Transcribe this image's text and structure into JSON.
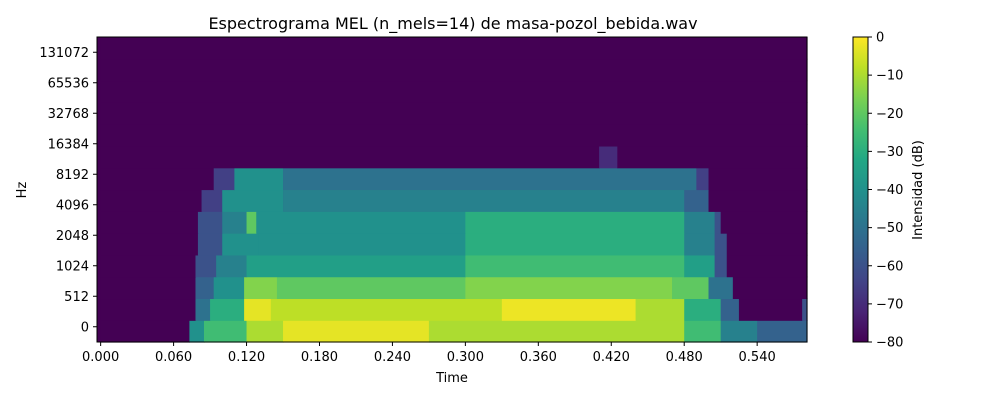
{
  "chart_data": {
    "type": "heatmap",
    "title": "Espectrograma MEL (n_mels=14) de masa-pozol_bebida.wav",
    "xlabel": "Time",
    "ylabel": "Hz",
    "x_ticks": [
      "0.000",
      "0.060",
      "0.120",
      "0.180",
      "0.240",
      "0.300",
      "0.360",
      "0.420",
      "0.480",
      "0.540"
    ],
    "x_tick_values": [
      0,
      0.06,
      0.12,
      0.18,
      0.24,
      0.3,
      0.36,
      0.42,
      0.48,
      0.54
    ],
    "xlim": [
      -0.003,
      0.581
    ],
    "y_ticks": [
      "0",
      "512",
      "1024",
      "2048",
      "4096",
      "8192",
      "16384",
      "32768",
      "65536",
      "131072"
    ],
    "n_mels": 14,
    "colorbar": {
      "label": "Intensidad (dB)",
      "ticks": [
        "0",
        "−10",
        "−20",
        "−30",
        "−40",
        "−50",
        "−60",
        "−70",
        "−80"
      ],
      "tick_values": [
        0,
        -10,
        -20,
        -30,
        -40,
        -50,
        -60,
        -70,
        -80
      ],
      "range": [
        -80,
        0
      ],
      "colormap": "viridis"
    },
    "bands": [
      {
        "band": 0,
        "segments": [
          [
            0.0,
            0.073,
            -80
          ],
          [
            0.073,
            0.085,
            -40
          ],
          [
            0.085,
            0.12,
            -25
          ],
          [
            0.12,
            0.15,
            -10
          ],
          [
            0.15,
            0.27,
            -3
          ],
          [
            0.27,
            0.48,
            -10
          ],
          [
            0.48,
            0.51,
            -25
          ],
          [
            0.51,
            0.54,
            -45
          ],
          [
            0.54,
            0.581,
            -55
          ]
        ]
      },
      {
        "band": 1,
        "segments": [
          [
            0.0,
            0.078,
            -80
          ],
          [
            0.078,
            0.09,
            -50
          ],
          [
            0.09,
            0.118,
            -30
          ],
          [
            0.118,
            0.14,
            -3
          ],
          [
            0.14,
            0.33,
            -8
          ],
          [
            0.33,
            0.44,
            -2
          ],
          [
            0.44,
            0.48,
            -10
          ],
          [
            0.48,
            0.51,
            -30
          ],
          [
            0.51,
            0.525,
            -55
          ],
          [
            0.525,
            0.577,
            -80
          ],
          [
            0.577,
            0.581,
            -60
          ]
        ]
      },
      {
        "band": 2,
        "segments": [
          [
            0.0,
            0.078,
            -80
          ],
          [
            0.078,
            0.093,
            -55
          ],
          [
            0.093,
            0.118,
            -40
          ],
          [
            0.118,
            0.145,
            -15
          ],
          [
            0.145,
            0.3,
            -20
          ],
          [
            0.3,
            0.47,
            -15
          ],
          [
            0.47,
            0.5,
            -20
          ],
          [
            0.5,
            0.52,
            -50
          ],
          [
            0.52,
            0.581,
            -80
          ]
        ]
      },
      {
        "band": 3,
        "segments": [
          [
            0.0,
            0.078,
            -80
          ],
          [
            0.078,
            0.095,
            -60
          ],
          [
            0.095,
            0.12,
            -45
          ],
          [
            0.12,
            0.3,
            -35
          ],
          [
            0.3,
            0.48,
            -25
          ],
          [
            0.48,
            0.505,
            -35
          ],
          [
            0.505,
            0.515,
            -60
          ],
          [
            0.515,
            0.581,
            -80
          ]
        ]
      },
      {
        "band": 4,
        "segments": [
          [
            0.0,
            0.08,
            -80
          ],
          [
            0.08,
            0.1,
            -60
          ],
          [
            0.1,
            0.13,
            -40
          ],
          [
            0.13,
            0.3,
            -40
          ],
          [
            0.3,
            0.48,
            -30
          ],
          [
            0.48,
            0.505,
            -45
          ],
          [
            0.505,
            0.515,
            -60
          ],
          [
            0.515,
            0.581,
            -80
          ]
        ]
      },
      {
        "band": 5,
        "segments": [
          [
            0.0,
            0.08,
            -80
          ],
          [
            0.08,
            0.1,
            -60
          ],
          [
            0.1,
            0.12,
            -45
          ],
          [
            0.12,
            0.128,
            -20
          ],
          [
            0.128,
            0.3,
            -40
          ],
          [
            0.3,
            0.48,
            -30
          ],
          [
            0.48,
            0.505,
            -45
          ],
          [
            0.505,
            0.51,
            -60
          ],
          [
            0.51,
            0.581,
            -80
          ]
        ]
      },
      {
        "band": 6,
        "segments": [
          [
            0.0,
            0.083,
            -80
          ],
          [
            0.083,
            0.1,
            -65
          ],
          [
            0.1,
            0.15,
            -40
          ],
          [
            0.15,
            0.48,
            -45
          ],
          [
            0.48,
            0.5,
            -55
          ],
          [
            0.5,
            0.581,
            -80
          ]
        ]
      },
      {
        "band": 7,
        "segments": [
          [
            0.0,
            0.093,
            -80
          ],
          [
            0.093,
            0.11,
            -65
          ],
          [
            0.11,
            0.15,
            -40
          ],
          [
            0.15,
            0.49,
            -50
          ],
          [
            0.49,
            0.5,
            -65
          ],
          [
            0.5,
            0.581,
            -80
          ]
        ]
      },
      {
        "band": 8,
        "segments": [
          [
            0.0,
            0.41,
            -80
          ],
          [
            0.41,
            0.425,
            -70
          ],
          [
            0.425,
            0.581,
            -80
          ]
        ]
      },
      {
        "band": 9,
        "segments": [
          [
            0.0,
            0.581,
            -80
          ]
        ]
      },
      {
        "band": 10,
        "segments": [
          [
            0.0,
            0.581,
            -80
          ]
        ]
      },
      {
        "band": 11,
        "segments": [
          [
            0.0,
            0.581,
            -80
          ]
        ]
      },
      {
        "band": 12,
        "segments": [
          [
            0.0,
            0.581,
            -80
          ]
        ]
      },
      {
        "band": 13,
        "segments": [
          [
            0.0,
            0.581,
            -80
          ]
        ]
      }
    ]
  }
}
